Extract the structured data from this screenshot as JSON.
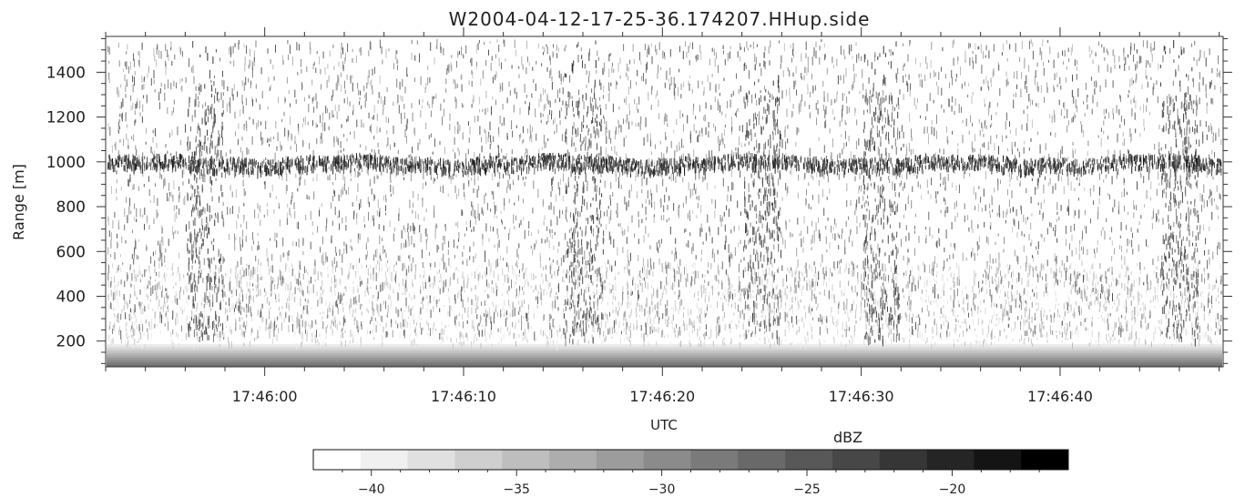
{
  "chart_data": {
    "type": "heatmap",
    "title": "W2004-04-12-17-25-36.174207.HHup.side",
    "xlabel": "UTC",
    "ylabel": "Range [m]",
    "x_ticks": [
      "17:46:00",
      "17:46:10",
      "17:46:20",
      "17:46:30",
      "17:46:40"
    ],
    "x_range_seconds": [
      -8,
      48.2
    ],
    "y_ticks": [
      200,
      400,
      600,
      800,
      1000,
      1200,
      1400
    ],
    "ylim": [
      85,
      1560
    ],
    "features": {
      "persistent_layer_range_m": 975,
      "enhanced_columns_utc": [
        "17:45:57",
        "17:46:16",
        "17:46:25",
        "17:46:31",
        "17:46:46"
      ]
    },
    "colorbar": {
      "label": "dBZ",
      "range": [
        -42,
        -16
      ],
      "ticks": [
        -40,
        -35,
        -30,
        -25,
        -20
      ],
      "colors": [
        "#ffffff",
        "#f0f0f0",
        "#e0e0e0",
        "#cfcfcf",
        "#bebebe",
        "#adadad",
        "#9c9c9c",
        "#8b8b8b",
        "#7a7a7a",
        "#696969",
        "#585858",
        "#474747",
        "#363636",
        "#252525",
        "#141414",
        "#000000"
      ]
    }
  }
}
